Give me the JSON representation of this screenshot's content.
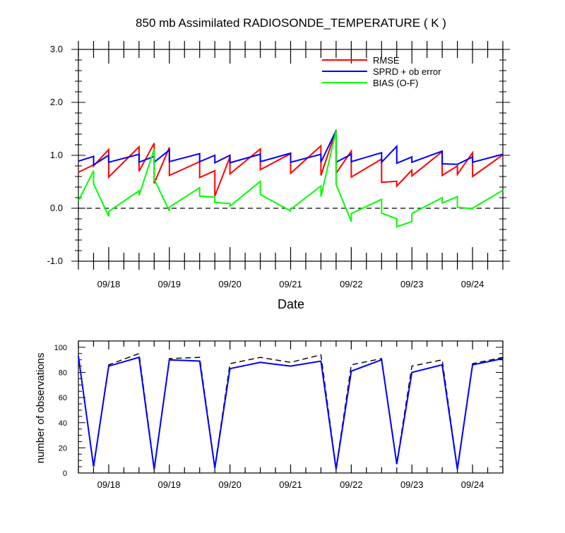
{
  "chart_data": [
    {
      "type": "line",
      "title": "850 mb Assimilated RADIOSONDE_TEMPERATURE ( K )",
      "xlabel": "Date",
      "ylabel": "",
      "ylim": [
        -1.0,
        3.0
      ],
      "yticks": [
        "-1.0",
        "0.0",
        "1.0",
        "2.0",
        "3.0"
      ],
      "xlim": [
        "09/17 12Z",
        "09/24 12Z"
      ],
      "xticks": [
        "09/18",
        "09/19",
        "09/20",
        "09/21",
        "09/22",
        "09/23",
        "09/24"
      ],
      "legend_position": "top-right",
      "reference_line": {
        "y": 0.0,
        "style": "dashed"
      },
      "series": [
        {
          "name": "RMSE",
          "color": "#ff0000",
          "points": [
            [
              "09/17 12Z",
              0.68
            ],
            [
              "09/17 18Z",
              0.82
            ],
            [
              "09/17 18Z",
              0.8
            ],
            [
              "09/18 00Z",
              1.11
            ],
            [
              "09/18 00Z",
              0.59
            ],
            [
              "09/18 12Z",
              1.16
            ],
            [
              "09/18 12Z",
              0.7
            ],
            [
              "09/18 18Z",
              1.23
            ],
            [
              "09/18 18Z",
              0.47
            ],
            [
              "09/19 00Z",
              1.15
            ],
            [
              "09/19 00Z",
              0.62
            ],
            [
              "09/19 12Z",
              0.88
            ],
            [
              "09/19 12Z",
              0.58
            ],
            [
              "09/19 18Z",
              0.71
            ],
            [
              "09/19 18Z",
              0.23
            ],
            [
              "09/20 00Z",
              0.97
            ],
            [
              "09/20 00Z",
              0.65
            ],
            [
              "09/20 12Z",
              1.12
            ],
            [
              "09/20 12Z",
              0.73
            ],
            [
              "09/21 00Z",
              1.03
            ],
            [
              "09/21 00Z",
              0.66
            ],
            [
              "09/21 12Z",
              1.18
            ],
            [
              "09/21 12Z",
              0.62
            ],
            [
              "09/21 18Z",
              1.48
            ],
            [
              "09/21 18Z",
              0.66
            ],
            [
              "09/22 00Z",
              1.08
            ],
            [
              "09/22 00Z",
              0.59
            ],
            [
              "09/22 12Z",
              0.93
            ],
            [
              "09/22 12Z",
              0.49
            ],
            [
              "09/22 18Z",
              0.51
            ],
            [
              "09/22 18Z",
              0.42
            ],
            [
              "09/23 00Z",
              0.72
            ],
            [
              "09/23 00Z",
              0.61
            ],
            [
              "09/23 12Z",
              1.07
            ],
            [
              "09/23 12Z",
              0.62
            ],
            [
              "09/23 18Z",
              0.8
            ],
            [
              "09/23 18Z",
              0.64
            ],
            [
              "09/24 00Z",
              1.05
            ],
            [
              "09/24 00Z",
              0.6
            ],
            [
              "09/24 12Z",
              1.01
            ]
          ]
        },
        {
          "name": "SPRD + ob error",
          "color": "#0000ff",
          "points": [
            [
              "09/17 12Z",
              0.89
            ],
            [
              "09/17 18Z",
              0.98
            ],
            [
              "09/17 18Z",
              0.82
            ],
            [
              "09/18 00Z",
              1.0
            ],
            [
              "09/18 00Z",
              0.87
            ],
            [
              "09/18 12Z",
              1.02
            ],
            [
              "09/18 12Z",
              0.87
            ],
            [
              "09/18 18Z",
              0.98
            ],
            [
              "09/18 18Z",
              0.87
            ],
            [
              "09/19 00Z",
              1.1
            ],
            [
              "09/19 00Z",
              0.88
            ],
            [
              "09/19 12Z",
              1.03
            ],
            [
              "09/19 12Z",
              0.88
            ],
            [
              "09/19 18Z",
              1.0
            ],
            [
              "09/19 18Z",
              0.86
            ],
            [
              "09/20 00Z",
              1.0
            ],
            [
              "09/20 00Z",
              0.86
            ],
            [
              "09/20 12Z",
              1.02
            ],
            [
              "09/20 12Z",
              0.88
            ],
            [
              "09/21 00Z",
              1.04
            ],
            [
              "09/21 00Z",
              0.87
            ],
            [
              "09/21 12Z",
              1.02
            ],
            [
              "09/21 12Z",
              0.87
            ],
            [
              "09/21 18Z",
              1.47
            ],
            [
              "09/21 18Z",
              0.87
            ],
            [
              "09/22 00Z",
              1.02
            ],
            [
              "09/22 00Z",
              0.88
            ],
            [
              "09/22 12Z",
              1.05
            ],
            [
              "09/22 12Z",
              0.87
            ],
            [
              "09/22 18Z",
              1.17
            ],
            [
              "09/22 18Z",
              0.85
            ],
            [
              "09/23 00Z",
              0.97
            ],
            [
              "09/23 00Z",
              0.87
            ],
            [
              "09/23 12Z",
              1.08
            ],
            [
              "09/23 12Z",
              0.84
            ],
            [
              "09/23 18Z",
              0.83
            ],
            [
              "09/23 18Z",
              0.83
            ],
            [
              "09/24 00Z",
              0.97
            ],
            [
              "09/24 00Z",
              0.87
            ],
            [
              "09/24 12Z",
              1.02
            ]
          ]
        },
        {
          "name": "BIAS (O-F)",
          "color": "#00ff00",
          "points": [
            [
              "09/17 12Z",
              0.14
            ],
            [
              "09/17 18Z",
              0.71
            ],
            [
              "09/17 18Z",
              0.46
            ],
            [
              "09/18 00Z",
              -0.15
            ],
            [
              "09/18 00Z",
              -0.06
            ],
            [
              "09/18 12Z",
              0.33
            ],
            [
              "09/18 12Z",
              0.24
            ],
            [
              "09/18 18Z",
              1.12
            ],
            [
              "09/18 18Z",
              0.55
            ],
            [
              "09/19 00Z",
              -0.05
            ],
            [
              "09/19 00Z",
              0.02
            ],
            [
              "09/19 12Z",
              0.39
            ],
            [
              "09/19 12Z",
              0.23
            ],
            [
              "09/19 18Z",
              0.21
            ],
            [
              "09/19 18Z",
              0.11
            ],
            [
              "09/20 00Z",
              0.09
            ],
            [
              "09/20 00Z",
              0.04
            ],
            [
              "09/20 12Z",
              0.51
            ],
            [
              "09/20 12Z",
              0.26
            ],
            [
              "09/21 00Z",
              -0.05
            ],
            [
              "09/21 00Z",
              -0.02
            ],
            [
              "09/21 12Z",
              0.42
            ],
            [
              "09/21 12Z",
              0.22
            ],
            [
              "09/21 18Z",
              1.47
            ],
            [
              "09/21 18Z",
              0.45
            ],
            [
              "09/22 00Z",
              -0.25
            ],
            [
              "09/22 00Z",
              -0.1
            ],
            [
              "09/22 12Z",
              0.17
            ],
            [
              "09/22 12Z",
              -0.09
            ],
            [
              "09/22 18Z",
              -0.2
            ],
            [
              "09/22 18Z",
              -0.35
            ],
            [
              "09/23 00Z",
              -0.25
            ],
            [
              "09/23 00Z",
              -0.1
            ],
            [
              "09/23 12Z",
              0.2
            ],
            [
              "09/23 12Z",
              0.1
            ],
            [
              "09/23 18Z",
              0.22
            ],
            [
              "09/23 18Z",
              0.02
            ],
            [
              "09/24 00Z",
              -0.01
            ],
            [
              "09/24 00Z",
              0.0
            ],
            [
              "09/24 12Z",
              0.34
            ]
          ]
        }
      ]
    },
    {
      "type": "line",
      "title": "",
      "xlabel": "",
      "ylabel": "number of observations",
      "ylim": [
        0,
        105
      ],
      "yticks": [
        "0",
        "20",
        "40",
        "60",
        "80",
        "100"
      ],
      "xlim": [
        "09/17 12Z",
        "09/24 12Z"
      ],
      "xticks": [
        "09/18",
        "09/19",
        "09/20",
        "09/21",
        "09/22",
        "09/23",
        "09/24"
      ],
      "x": [
        "09/17 12Z",
        "09/17 18Z",
        "09/18 00Z",
        "09/18 12Z",
        "09/18 18Z",
        "09/19 00Z",
        "09/19 12Z",
        "09/19 18Z",
        "09/20 00Z",
        "09/20 12Z",
        "09/21 00Z",
        "09/21 12Z",
        "09/21 18Z",
        "09/22 00Z",
        "09/22 12Z",
        "09/22 18Z",
        "09/23 00Z",
        "09/23 12Z",
        "09/23 18Z",
        "09/24 00Z",
        "09/24 12Z"
      ],
      "series": [
        {
          "style": "dashed",
          "color": "#000000",
          "values": [
            93,
            6,
            86,
            95,
            4,
            91,
            92,
            5,
            87,
            92,
            88,
            94,
            4,
            86,
            91,
            8,
            85,
            90,
            4,
            87,
            92
          ]
        },
        {
          "style": "solid",
          "color": "#0000ff",
          "values": [
            93,
            5,
            85,
            92,
            3,
            90,
            89,
            4,
            83,
            88,
            85,
            89,
            3,
            81,
            90,
            7,
            80,
            86,
            3,
            86,
            91
          ]
        }
      ]
    }
  ]
}
